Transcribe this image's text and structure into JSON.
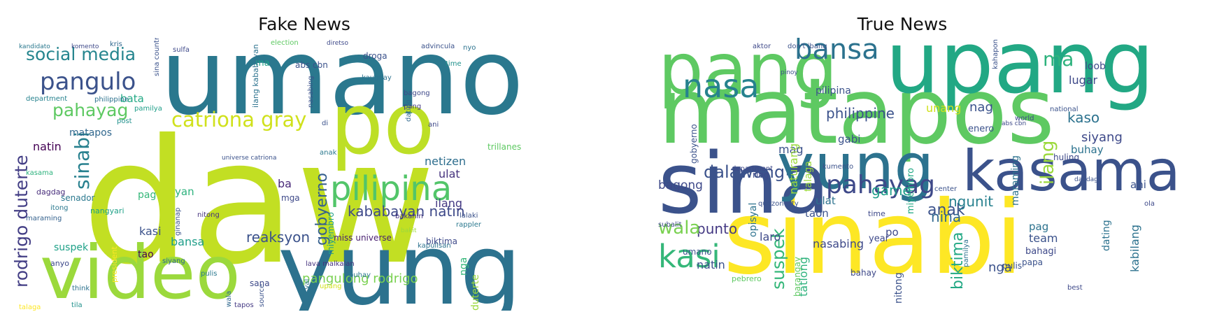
{
  "figure": [
    {
      "id": "fake",
      "title": "Fake News",
      "words": [
        {
          "text": "umano",
          "color": "#2a788e"
        },
        {
          "text": "daw",
          "color": "#c2df23"
        },
        {
          "text": "video",
          "color": "#9bd93c"
        },
        {
          "text": "yung",
          "color": "#2c728e"
        },
        {
          "text": "po",
          "color": "#bddf26"
        },
        {
          "text": "pangulo",
          "color": "#3b528b"
        },
        {
          "text": "pilipina",
          "color": "#52c569"
        },
        {
          "text": "social media",
          "color": "#25858e"
        },
        {
          "text": "catriona gray",
          "color": "#d0e11c"
        },
        {
          "text": "rodrigo duterte",
          "color": "#433e85"
        },
        {
          "text": "pahayag",
          "color": "#5ec962"
        },
        {
          "text": "sinabi",
          "color": "#27808e"
        },
        {
          "text": "kababayan natin",
          "color": "#3e4989"
        },
        {
          "text": "gobyerno",
          "color": "#355f8d"
        },
        {
          "text": "reaksyon",
          "color": "#3b528b"
        },
        {
          "text": "ilang",
          "color": "#443983"
        },
        {
          "text": "netizen",
          "color": "#2e6e8e"
        },
        {
          "text": "matapos",
          "color": "#31688e"
        },
        {
          "text": "natin",
          "color": "#440154"
        },
        {
          "text": "ulat",
          "color": "#46337e"
        },
        {
          "text": "bata",
          "color": "#22a884"
        },
        {
          "text": "pag",
          "color": "#35b779"
        },
        {
          "text": "ba",
          "color": "#482878"
        },
        {
          "text": "yan",
          "color": "#2db27d"
        },
        {
          "text": "bansa",
          "color": "#1f9e89"
        },
        {
          "text": "suspek",
          "color": "#1fa188"
        },
        {
          "text": "kasi",
          "color": "#3b528b"
        },
        {
          "text": "tao",
          "color": "#440154"
        },
        {
          "text": "pangulong rodrigo",
          "color": "#7ad151"
        },
        {
          "text": "ma",
          "color": "#1fa188"
        },
        {
          "text": "biktima",
          "color": "#3e4989"
        },
        {
          "text": "pulis",
          "color": "#2a788e"
        },
        {
          "text": "nitong",
          "color": "#46337e"
        },
        {
          "text": "miss universe",
          "color": "#481f70"
        },
        {
          "text": "abs cbn",
          "color": "#3b528b"
        },
        {
          "text": "philippine",
          "color": "#2c728e"
        },
        {
          "text": "department",
          "color": "#26828e"
        },
        {
          "text": "senador",
          "color": "#2a788e"
        },
        {
          "text": "duterte",
          "color": "#9bd93c"
        },
        {
          "text": "siyang",
          "color": "#31688e"
        },
        {
          "text": "anyo",
          "color": "#3e4989"
        },
        {
          "text": "dagdag",
          "color": "#472d7b"
        },
        {
          "text": "itong",
          "color": "#2a788e"
        },
        {
          "text": "nangyari",
          "color": "#1fa188"
        },
        {
          "text": "maraming",
          "color": "#34618d"
        },
        {
          "text": "president",
          "color": "#fde725"
        },
        {
          "text": "kasama",
          "color": "#2db27d"
        },
        {
          "text": "lava malkalan",
          "color": "#46337e"
        },
        {
          "text": "droga",
          "color": "#3b528b"
        },
        {
          "text": "advincula",
          "color": "#3b528b"
        },
        {
          "text": "election",
          "color": "#5ec962"
        },
        {
          "text": "kris",
          "color": "#31688e"
        },
        {
          "text": "komento",
          "color": "#3e4989"
        },
        {
          "text": "kandidato",
          "color": "#2a788e"
        },
        {
          "text": "post",
          "color": "#21918c"
        },
        {
          "text": "pamilya",
          "color": "#1f9e89"
        },
        {
          "text": "sina country",
          "color": "#3b528b"
        },
        {
          "text": "nasabing",
          "color": "#3b528b"
        },
        {
          "text": "kaugnay",
          "color": "#2c728e"
        },
        {
          "text": "bagong",
          "color": "#3e4989"
        },
        {
          "text": "pang",
          "color": "#443983"
        },
        {
          "text": "dating",
          "color": "#31688e"
        },
        {
          "text": "ani",
          "color": "#3e4989"
        },
        {
          "text": "anak",
          "color": "#2a788e"
        },
        {
          "text": "trillanes",
          "color": "#5ec962"
        },
        {
          "text": "rappler",
          "color": "#2a788e"
        },
        {
          "text": "lalaki",
          "color": "#3b528b"
        },
        {
          "text": "kapulisan",
          "color": "#2c728e"
        },
        {
          "text": "bakit",
          "color": "#9bd93c"
        },
        {
          "text": "bakahin",
          "color": "#46337e"
        },
        {
          "text": "tila",
          "color": "#21918c"
        },
        {
          "text": "talaga",
          "color": "#fde725"
        },
        {
          "text": "think",
          "color": "#2c728e"
        },
        {
          "text": "sana",
          "color": "#3e4989"
        },
        {
          "text": "wala",
          "color": "#31688e"
        },
        {
          "text": "tapos",
          "color": "#443983"
        },
        {
          "text": "source",
          "color": "#3b528b"
        },
        {
          "text": "opisyal",
          "color": "#2c728e"
        },
        {
          "text": "buhay",
          "color": "#2a788e"
        },
        {
          "text": "upang",
          "color": "#d0e11c"
        },
        {
          "text": "universe catriona",
          "color": "#3b528b"
        },
        {
          "text": "diretso",
          "color": "#3e4989"
        },
        {
          "text": "nyo",
          "color": "#2c728e"
        },
        {
          "text": "time",
          "color": "#21918c"
        },
        {
          "text": "miyembro",
          "color": "#1f9e89"
        },
        {
          "text": "ginanap",
          "color": "#3b528b"
        },
        {
          "text": "nga",
          "color": "#35b779"
        },
        {
          "text": "ilang kababayan",
          "color": "#2c728e"
        },
        {
          "text": "sulfa",
          "color": "#3e4989"
        },
        {
          "text": "di",
          "color": "#3b528b"
        },
        {
          "text": "mga",
          "color": "#3e4989"
        }
      ]
    },
    {
      "id": "true",
      "title": "True News",
      "words": [
        {
          "text": "matapos",
          "color": "#5ec962"
        },
        {
          "text": "sinabi",
          "color": "#fde725"
        },
        {
          "text": "upang",
          "color": "#22a884"
        },
        {
          "text": "pang",
          "color": "#5ec962"
        },
        {
          "text": "sina",
          "color": "#3b528b"
        },
        {
          "text": "yung",
          "color": "#2c728e"
        },
        {
          "text": "kasama",
          "color": "#3b528b"
        },
        {
          "text": "bansa",
          "color": "#2c728e"
        },
        {
          "text": "nasa",
          "color": "#26828e"
        },
        {
          "text": "kasi",
          "color": "#35b779"
        },
        {
          "text": "pahayag",
          "color": "#3e4989"
        },
        {
          "text": "ma",
          "color": "#2db27d"
        },
        {
          "text": "philippine",
          "color": "#3b528b"
        },
        {
          "text": "pilipina",
          "color": "#3b528b"
        },
        {
          "text": "unang",
          "color": "#d0e11c"
        },
        {
          "text": "nag",
          "color": "#3b528b"
        },
        {
          "text": "kaso",
          "color": "#2c728e"
        },
        {
          "text": "siyang",
          "color": "#3e4989"
        },
        {
          "text": "buhay",
          "color": "#2c728e"
        },
        {
          "text": "ilang",
          "color": "#9bd93c"
        },
        {
          "text": "dalawang",
          "color": "#3b528b"
        },
        {
          "text": "game",
          "color": "#1f9e89"
        },
        {
          "text": "anak",
          "color": "#3b528b"
        },
        {
          "text": "nina",
          "color": "#31688e"
        },
        {
          "text": "ngunit",
          "color": "#27808e"
        },
        {
          "text": "biktima",
          "color": "#22a884"
        },
        {
          "text": "suspek",
          "color": "#35b779"
        },
        {
          "text": "punto",
          "color": "#443983"
        },
        {
          "text": "wala",
          "color": "#7ad151"
        },
        {
          "text": "laro",
          "color": "#3e4989"
        },
        {
          "text": "taon",
          "color": "#3b528b"
        },
        {
          "text": "nasabing",
          "color": "#3e4989"
        },
        {
          "text": "nitong",
          "color": "#3b528b"
        },
        {
          "text": "natin",
          "color": "#3b528b"
        },
        {
          "text": "umano",
          "color": "#3b528b"
        },
        {
          "text": "mag",
          "color": "#3b528b"
        },
        {
          "text": "gabi",
          "color": "#3b528b"
        },
        {
          "text": "loob",
          "color": "#3e4989"
        },
        {
          "text": "lugar",
          "color": "#3e4989"
        },
        {
          "text": "bagong",
          "color": "#3e4989"
        },
        {
          "text": "opisyal",
          "color": "#2c728e"
        },
        {
          "text": "gobyerno",
          "color": "#3b528b"
        },
        {
          "text": "naturang",
          "color": "#9bd93c"
        },
        {
          "text": "ulat",
          "color": "#2c728e"
        },
        {
          "text": "team",
          "color": "#3b528b"
        },
        {
          "text": "bahagi",
          "color": "#3e4989"
        },
        {
          "text": "papa",
          "color": "#3b528b"
        },
        {
          "text": "pag",
          "color": "#2c728e"
        },
        {
          "text": "dating",
          "color": "#2c728e"
        },
        {
          "text": "kabilang",
          "color": "#2c728e"
        },
        {
          "text": "nga",
          "color": "#3b528b"
        },
        {
          "text": "ani",
          "color": "#3b528b"
        },
        {
          "text": "po",
          "color": "#3e4989"
        },
        {
          "text": "year",
          "color": "#3e4989"
        },
        {
          "text": "tatlong",
          "color": "#2db27d"
        },
        {
          "text": "bahay",
          "color": "#3e4989"
        },
        {
          "text": "barangay",
          "color": "#5ec962"
        },
        {
          "text": "talaga",
          "color": "#9bd93c"
        },
        {
          "text": "miyembro",
          "color": "#22a884"
        },
        {
          "text": "maraming",
          "color": "#2c728e"
        },
        {
          "text": "huling",
          "color": "#3e4989"
        },
        {
          "text": "enero",
          "color": "#3b528b"
        },
        {
          "text": "time",
          "color": "#3e4989"
        },
        {
          "text": "pamilya",
          "color": "#2c728e"
        },
        {
          "text": "best",
          "color": "#3e4989"
        },
        {
          "text": "pulis",
          "color": "#3b528b"
        },
        {
          "text": "world",
          "color": "#3e4989"
        },
        {
          "text": "national",
          "color": "#3b528b"
        },
        {
          "text": "department",
          "color": "#3e4989"
        },
        {
          "text": "quezon city",
          "color": "#3b528b"
        },
        {
          "text": "abs cbn",
          "color": "#3e4989"
        },
        {
          "text": "pinoy",
          "color": "#3b528b"
        },
        {
          "text": "aktor",
          "color": "#3e4989"
        },
        {
          "text": "don't ibang",
          "color": "#3b528b"
        },
        {
          "text": "ring",
          "color": "#3e4989"
        },
        {
          "text": "kumento",
          "color": "#3b528b"
        },
        {
          "text": "ola",
          "color": "#3e4989"
        },
        {
          "text": "kahapon",
          "color": "#3b528b"
        },
        {
          "text": "pebrero",
          "color": "#5ec962"
        },
        {
          "text": "center",
          "color": "#3b528b"
        },
        {
          "text": "subalit",
          "color": "#3e4989"
        },
        {
          "text": "dagdag",
          "color": "#3b528b"
        }
      ]
    }
  ]
}
